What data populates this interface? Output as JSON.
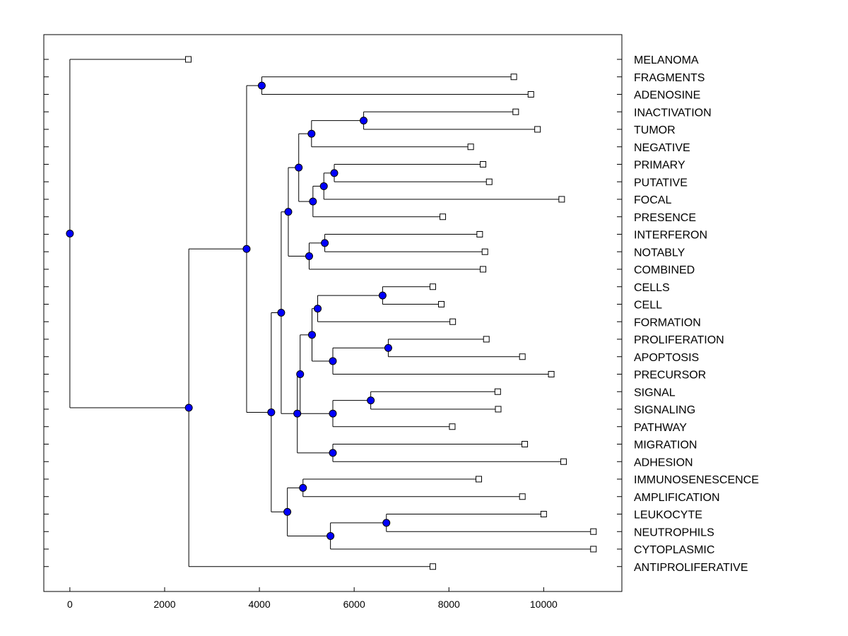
{
  "chart_data": {
    "type": "dendrogram",
    "title": "",
    "xlabel": "",
    "ylabel": "",
    "xlim": [
      -550,
      11650
    ],
    "xticks": [
      0,
      2000,
      4000,
      6000,
      8000,
      10000
    ],
    "xtick_labels": [
      "0",
      "2000",
      "4000",
      "6000",
      "8000",
      "10000"
    ],
    "colors": {
      "node_fill": "#0000ff",
      "line": "#000000",
      "leaf_fill": "#ffffff"
    },
    "leaves": [
      {
        "name": "MELANOMA",
        "x": 2500
      },
      {
        "name": "FRAGMENTS",
        "x": 9370
      },
      {
        "name": "ADENOSINE",
        "x": 9730
      },
      {
        "name": "INACTIVATION",
        "x": 9410
      },
      {
        "name": "TUMOR",
        "x": 9870
      },
      {
        "name": "NEGATIVE",
        "x": 8460
      },
      {
        "name": "PRIMARY",
        "x": 8720
      },
      {
        "name": "PUTATIVE",
        "x": 8850
      },
      {
        "name": "FOCAL",
        "x": 10380
      },
      {
        "name": "PRESENCE",
        "x": 7870
      },
      {
        "name": "INTERFERON",
        "x": 8650
      },
      {
        "name": "NOTABLY",
        "x": 8760
      },
      {
        "name": "COMBINED",
        "x": 8720
      },
      {
        "name": "CELLS",
        "x": 7660
      },
      {
        "name": "CELL",
        "x": 7840
      },
      {
        "name": "FORMATION",
        "x": 8080
      },
      {
        "name": "PROLIFERATION",
        "x": 8790
      },
      {
        "name": "APOPTOSIS",
        "x": 9550
      },
      {
        "name": "PRECURSOR",
        "x": 10160
      },
      {
        "name": "SIGNAL",
        "x": 9030
      },
      {
        "name": "SIGNALING",
        "x": 9040
      },
      {
        "name": "PATHWAY",
        "x": 8070
      },
      {
        "name": "MIGRATION",
        "x": 9600
      },
      {
        "name": "ADHESION",
        "x": 10420
      },
      {
        "name": "IMMUNOSENESCENCE",
        "x": 8630
      },
      {
        "name": "AMPLIFICATION",
        "x": 9550
      },
      {
        "name": "LEUKOCYTE",
        "x": 10000
      },
      {
        "name": "NEUTROPHILS",
        "x": 11050
      },
      {
        "name": "CYTOPLASMIC",
        "x": 11050
      },
      {
        "name": "ANTIPROLIFERATIVE",
        "x": 7660
      }
    ],
    "merges": [
      {
        "id": "n1",
        "x": 4050,
        "children": [
          "FRAGMENTS",
          "ADENOSINE"
        ]
      },
      {
        "id": "n2",
        "x": 6200,
        "children": [
          "INACTIVATION",
          "TUMOR"
        ]
      },
      {
        "id": "n3",
        "x": 5100,
        "children": [
          "n2",
          "NEGATIVE"
        ]
      },
      {
        "id": "n4",
        "x": 5580,
        "children": [
          "PRIMARY",
          "PUTATIVE"
        ]
      },
      {
        "id": "n5",
        "x": 5360,
        "children": [
          "n4",
          "FOCAL"
        ]
      },
      {
        "id": "n6",
        "x": 5130,
        "children": [
          "n5",
          "PRESENCE"
        ]
      },
      {
        "id": "n7",
        "x": 4830,
        "children": [
          "n3",
          "n6"
        ]
      },
      {
        "id": "n8",
        "x": 5380,
        "children": [
          "INTERFERON",
          "NOTABLY"
        ]
      },
      {
        "id": "n9",
        "x": 5050,
        "children": [
          "n8",
          "COMBINED"
        ]
      },
      {
        "id": "n10",
        "x": 4610,
        "children": [
          "n7",
          "n9"
        ]
      },
      {
        "id": "n11",
        "x": 6600,
        "children": [
          "CELLS",
          "CELL"
        ]
      },
      {
        "id": "n12",
        "x": 5230,
        "children": [
          "n11",
          "FORMATION"
        ]
      },
      {
        "id": "n13",
        "x": 6720,
        "children": [
          "PROLIFERATION",
          "APOPTOSIS"
        ]
      },
      {
        "id": "n14",
        "x": 5550,
        "children": [
          "n13",
          "PRECURSOR"
        ]
      },
      {
        "id": "n15",
        "x": 5110,
        "children": [
          "n12",
          "n14"
        ]
      },
      {
        "id": "n16",
        "x": 6350,
        "children": [
          "SIGNAL",
          "SIGNALING"
        ]
      },
      {
        "id": "n17",
        "x": 5550,
        "children": [
          "n16",
          "PATHWAY"
        ]
      },
      {
        "id": "n18",
        "x": 4860,
        "children": [
          "n15",
          "n17"
        ]
      },
      {
        "id": "n19",
        "x": 5550,
        "children": [
          "MIGRATION",
          "ADHESION"
        ]
      },
      {
        "id": "n20",
        "x": 4800,
        "children": [
          "n18",
          "n19"
        ]
      },
      {
        "id": "n21",
        "x": 4460,
        "children": [
          "n10",
          "n20"
        ]
      },
      {
        "id": "n22",
        "x": 4920,
        "children": [
          "IMMUNOSENESCENCE",
          "AMPLIFICATION"
        ]
      },
      {
        "id": "n23",
        "x": 6680,
        "children": [
          "LEUKOCYTE",
          "NEUTROPHILS"
        ]
      },
      {
        "id": "n24",
        "x": 5500,
        "children": [
          "n23",
          "CYTOPLASMIC"
        ]
      },
      {
        "id": "n25",
        "x": 4590,
        "children": [
          "n22",
          "n24"
        ]
      },
      {
        "id": "n26",
        "x": 4250,
        "children": [
          "n21",
          "n25"
        ]
      },
      {
        "id": "n27",
        "x": 3730,
        "children": [
          "n1",
          "n26"
        ]
      },
      {
        "id": "n28",
        "x": 2510,
        "children": [
          "n27",
          "ANTIPROLIFERATIVE"
        ]
      },
      {
        "id": "n29",
        "x": 0,
        "children": [
          "MELANOMA",
          "n28"
        ]
      }
    ]
  }
}
